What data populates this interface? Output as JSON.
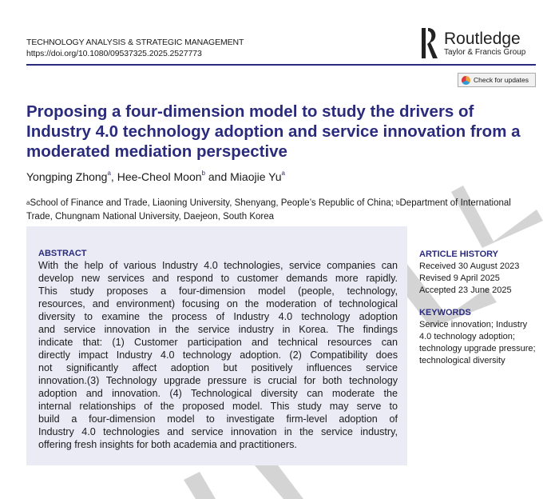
{
  "header": {
    "journal": "TECHNOLOGY ANALYSIS & STRATEGIC MANAGEMENT",
    "doi": "https://doi.org/10.1080/09537325.2025.2527773",
    "publisher": "Routledge",
    "publisher_group": "Taylor & Francis Group",
    "check_updates": "Check for updates"
  },
  "colors": {
    "accent": "#2b2b7e",
    "abstract_bg": "#ebebf6"
  },
  "title": "Proposing a four-dimension model to study the drivers of Industry 4.0 technology adoption and service innovation from a moderated mediation perspective",
  "authors": [
    {
      "name": "Yongping Zhong",
      "aff": "a"
    },
    {
      "name": "Hee-Cheol Moon",
      "aff": "b"
    },
    {
      "name": "Miaojie Yu",
      "aff": "a"
    }
  ],
  "authors_sep": [
    ", ",
    " and "
  ],
  "affiliations": [
    {
      "key": "a",
      "text": "School of Finance and Trade, Liaoning University, Shenyang, People’s Republic of China; "
    },
    {
      "key": "b",
      "text": "Department of International Trade, Chungnam National University, Daejeon, South Korea"
    }
  ],
  "abstract": {
    "heading": "ABSTRACT",
    "lines": [
      "With the help of various Industry 4.0 technologies, service companies can",
      "develop new services and respond to customer demands more rapidly.",
      "This study proposes a four-dimension model (people, technology,",
      "resources, and environment) focusing on the moderation of technological",
      "diversity to examine the process of Industry 4.0 technology adoption",
      "and service innovation in the service industry in Korea. The findings",
      "indicate that: (1) Customer participation and technical resources can",
      "directly impact Industry 4.0 technology adoption. (2) Compatibility does",
      "not significantly affect adoption but positively influences service",
      "innovation.(3) Technology upgrade pressure is crucial for both technology",
      "adoption and innovation. (4) Technological diversity can moderate the",
      "internal relationships of the proposed model. This study may serve to",
      "build a four-dimension model to investigate firm-level adoption of",
      "Industry 4.0 technologies and service innovation in the service industry,",
      "offering fresh insights for both academia and practitioners."
    ]
  },
  "history": {
    "heading": "ARTICLE HISTORY",
    "items": [
      "Received 30 August 2023",
      "Revised 9 April 2025",
      "Accepted 23 June 2025"
    ]
  },
  "keywords": {
    "heading": "KEYWORDS",
    "text": "Service innovation; Industry 4.0 technology adoption; technology upgrade pressure; technological diversity"
  }
}
